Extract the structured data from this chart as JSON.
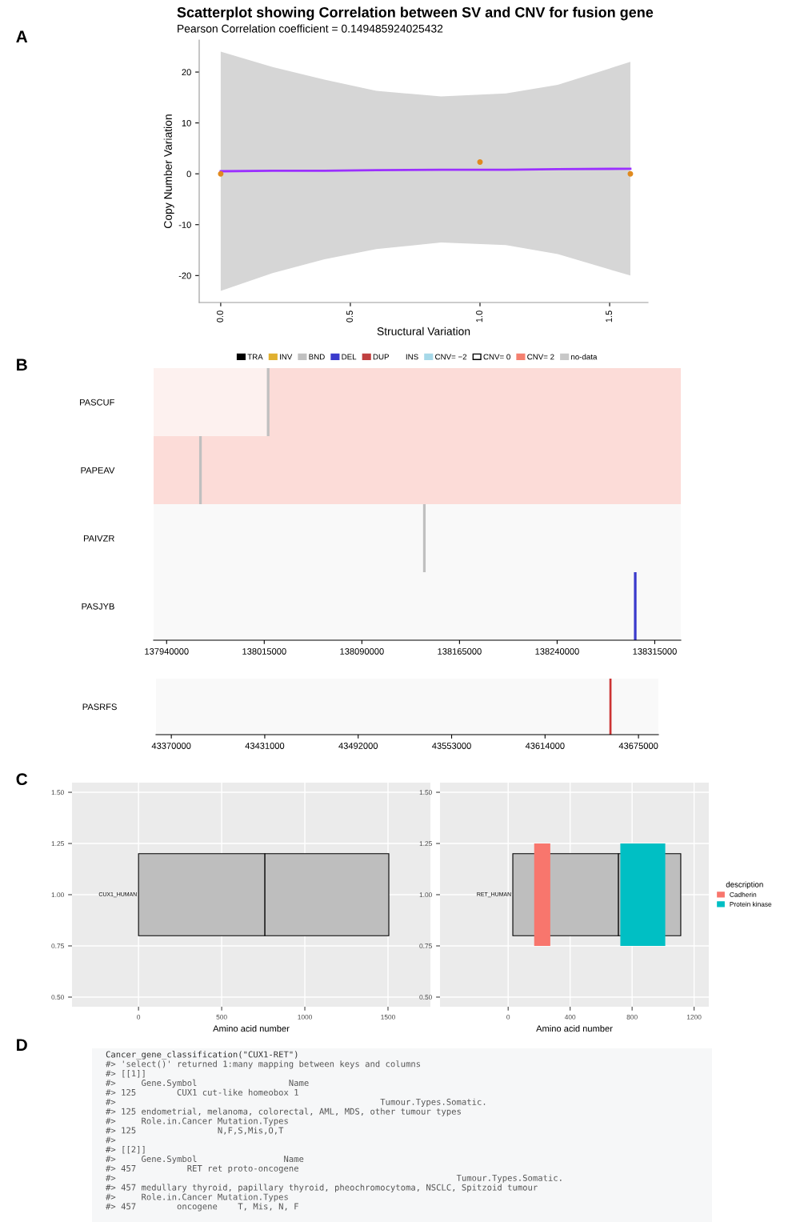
{
  "chart_data": [
    {
      "type": "scatter",
      "title": "Scatterplot showing Correlation between SV and CNV for fusion gene",
      "subtitle": "Pearson Correlation coefficient = 0.149485924025432",
      "xlabel": "Structural Variation",
      "ylabel": "Copy Number Variation",
      "annotations": [
        "A"
      ],
      "marker": "circle",
      "xlim": [
        -0.083,
        1.648
      ],
      "ylim": [
        -25.3,
        26.3
      ],
      "xticks": [
        {
          "value": 0,
          "label": "0.0"
        },
        {
          "value": 0.5,
          "label": "0.5"
        },
        {
          "value": 1,
          "label": "1.0"
        },
        {
          "value": 1.5,
          "label": "1.5"
        }
      ],
      "yticks": [
        -20,
        -10,
        0,
        10,
        20
      ],
      "series": [
        {
          "type": "scatter",
          "color": "#e08a1e",
          "x": [
            0,
            1,
            1.58
          ],
          "values": [
            0,
            2.3,
            0
          ]
        },
        {
          "type": "line",
          "marker": "none",
          "color": "#9b30ff",
          "x": [
            0,
            0.2,
            0.4,
            0.6,
            0.85,
            1.1,
            1.3,
            1.58
          ],
          "values": [
            0.5,
            0.6,
            0.6,
            0.7,
            0.8,
            0.8,
            0.9,
            1.0
          ],
          "lower": [
            -23,
            -19.5,
            -16.8,
            -14.8,
            -13.5,
            -14,
            -15.8,
            -20
          ],
          "upper": [
            24,
            21,
            18.5,
            16.3,
            15.2,
            15.8,
            17.5,
            22
          ]
        }
      ]
    },
    {
      "type": "bar",
      "orientation": "horizontal",
      "annotations": [
        "B"
      ],
      "legend": "top",
      "categories": [
        "PASCUF",
        "PAPEAV",
        "PAIVZR",
        "PASJYB"
      ],
      "xlim": [
        137930000,
        138335000
      ],
      "xticks": [
        137940000,
        138015000,
        138090000,
        138165000,
        138240000,
        138315000
      ],
      "series": [
        {
          "base": [
            137930000,
            137930000,
            null,
            null
          ],
          "values": [
            88000,
            405000,
            null,
            null
          ],
          "colors": [
            "#fdf1ef",
            "#fcdcd8",
            null,
            null
          ]
        },
        {
          "base": [
            138018000,
            null,
            null,
            null
          ],
          "values": [
            317000,
            null,
            null,
            null
          ],
          "color": "#fcdcd8"
        },
        {
          "name": "TRA",
          "color": "#000000",
          "values": [
            null,
            null,
            null,
            null
          ]
        },
        {
          "name": "INV",
          "color": "#e0b030",
          "values": [
            null,
            null,
            null,
            null
          ]
        },
        {
          "name": "BND",
          "color": "#c0c0c0",
          "base": [
            138017000,
            137965000,
            138137000,
            null
          ],
          "values": [
            2000,
            2000,
            2000,
            null
          ]
        },
        {
          "name": "DEL",
          "color": "#3b3bcc",
          "base": [
            null,
            null,
            null,
            138299000
          ],
          "values": [
            null,
            null,
            null,
            2000
          ]
        },
        {
          "name": "DUP",
          "color": "#c04040",
          "values": [
            null,
            null,
            null,
            null
          ]
        },
        {
          "name": "INS",
          "color": null,
          "values": [
            null,
            null,
            null,
            null
          ]
        },
        {
          "name": "CNV= −2",
          "color": "#a6d8e8",
          "values": [
            null,
            null,
            null,
            null
          ]
        },
        {
          "name": "CNV= 0",
          "color": "#ffffff",
          "values": [
            null,
            null,
            null,
            null
          ]
        },
        {
          "name": "CNV= 2",
          "color": "#f4806f",
          "values": [
            null,
            null,
            null,
            null
          ]
        },
        {
          "name": "no-data",
          "color": "#c8c8c8",
          "values": [
            null,
            null,
            null,
            null
          ]
        }
      ]
    },
    {
      "type": "bar",
      "orientation": "horizontal",
      "categories": [
        "PASRFS"
      ],
      "xlim": [
        43360000,
        43688000
      ],
      "xticks": [
        43370000,
        43431000,
        43492000,
        43553000,
        43614000,
        43675000
      ],
      "series": [
        {
          "base": [
            43656000
          ],
          "values": [
            1400
          ],
          "color": "#cc3333"
        }
      ]
    },
    {
      "type": "bar",
      "orientation": "horizontal",
      "xlabel": "Amino acid number",
      "grid": true,
      "annotations": [
        "C",
        {
          "text": "CUX1_HUMAN",
          "x": 0,
          "y": 1
        }
      ],
      "xlim": [
        -400,
        1755
      ],
      "ylim": [
        0.453,
        1.547
      ],
      "xticks": [
        0,
        500,
        1000,
        1500
      ],
      "yticks": [
        {
          "value": 0.5,
          "label": "0.50"
        },
        {
          "value": 0.75,
          "label": "0.75"
        },
        {
          "value": 1,
          "label": "1.00"
        },
        {
          "value": 1.25,
          "label": "1.25"
        },
        {
          "value": 1.5,
          "label": "1.50"
        }
      ],
      "series": [
        {
          "x": [
            1,
            1
          ],
          "base": [
            0,
            760
          ],
          "values": [
            760,
            745
          ],
          "color": "#bebebe"
        }
      ]
    },
    {
      "type": "bar",
      "orientation": "horizontal",
      "xlabel": "Amino acid number",
      "grid": true,
      "legend": "right",
      "legend_title": "description",
      "annotations": [
        {
          "text": "RET_HUMAN",
          "x": 30,
          "y": 1
        }
      ],
      "xlim": [
        -440,
        1295
      ],
      "ylim": [
        0.453,
        1.547
      ],
      "xticks": [
        0,
        400,
        800,
        1200
      ],
      "yticks": [
        {
          "value": 0.5,
          "label": "0.50"
        },
        {
          "value": 0.75,
          "label": "0.75"
        },
        {
          "value": 1,
          "label": "1.00"
        },
        {
          "value": 1.25,
          "label": "1.25"
        },
        {
          "value": 1.5,
          "label": "1.50"
        }
      ],
      "series": [
        {
          "x": [
            1,
            1
          ],
          "base": [
            30,
            712
          ],
          "values": [
            682,
            402
          ],
          "color": "#bebebe"
        },
        {
          "name": "Cadherin",
          "x": [
            1
          ],
          "base": [
            168
          ],
          "values": [
            104
          ],
          "color": "#f8766d"
        },
        {
          "name": "Protein kinase",
          "x": [
            1
          ],
          "base": [
            724
          ],
          "values": [
            290
          ],
          "color": "#00bfc4"
        }
      ]
    },
    {
      "type": "other",
      "annotations": [
        "D",
        "Cancer_gene_classification(\"CUX1-RET\")",
        "#> 'select()' returned 1:many mapping between keys and columns",
        "#> [[1]]",
        "#>     Gene.Symbol                  Name",
        "#> 125        CUX1 cut-like homeobox 1",
        "#>                                                    Tumour.Types.Somatic.",
        "#> 125 endometrial, melanoma, colorectal, AML, MDS, other tumour types",
        "#>     Role.in.Cancer Mutation.Types",
        "#> 125                N,F,S,Mis,O,T",
        "#>",
        "#> [[2]]",
        "#>     Gene.Symbol                 Name",
        "#> 457          RET ret proto-oncogene",
        "#>                                                                   Tumour.Types.Somatic.",
        "#> 457 medullary thyroid, papillary thyroid, pheochromocytoma, NSCLC, Spitzoid tumour",
        "#>     Role.in.Cancer Mutation.Types",
        "#> 457        oncogene    T, Mis, N, F"
      ]
    }
  ]
}
